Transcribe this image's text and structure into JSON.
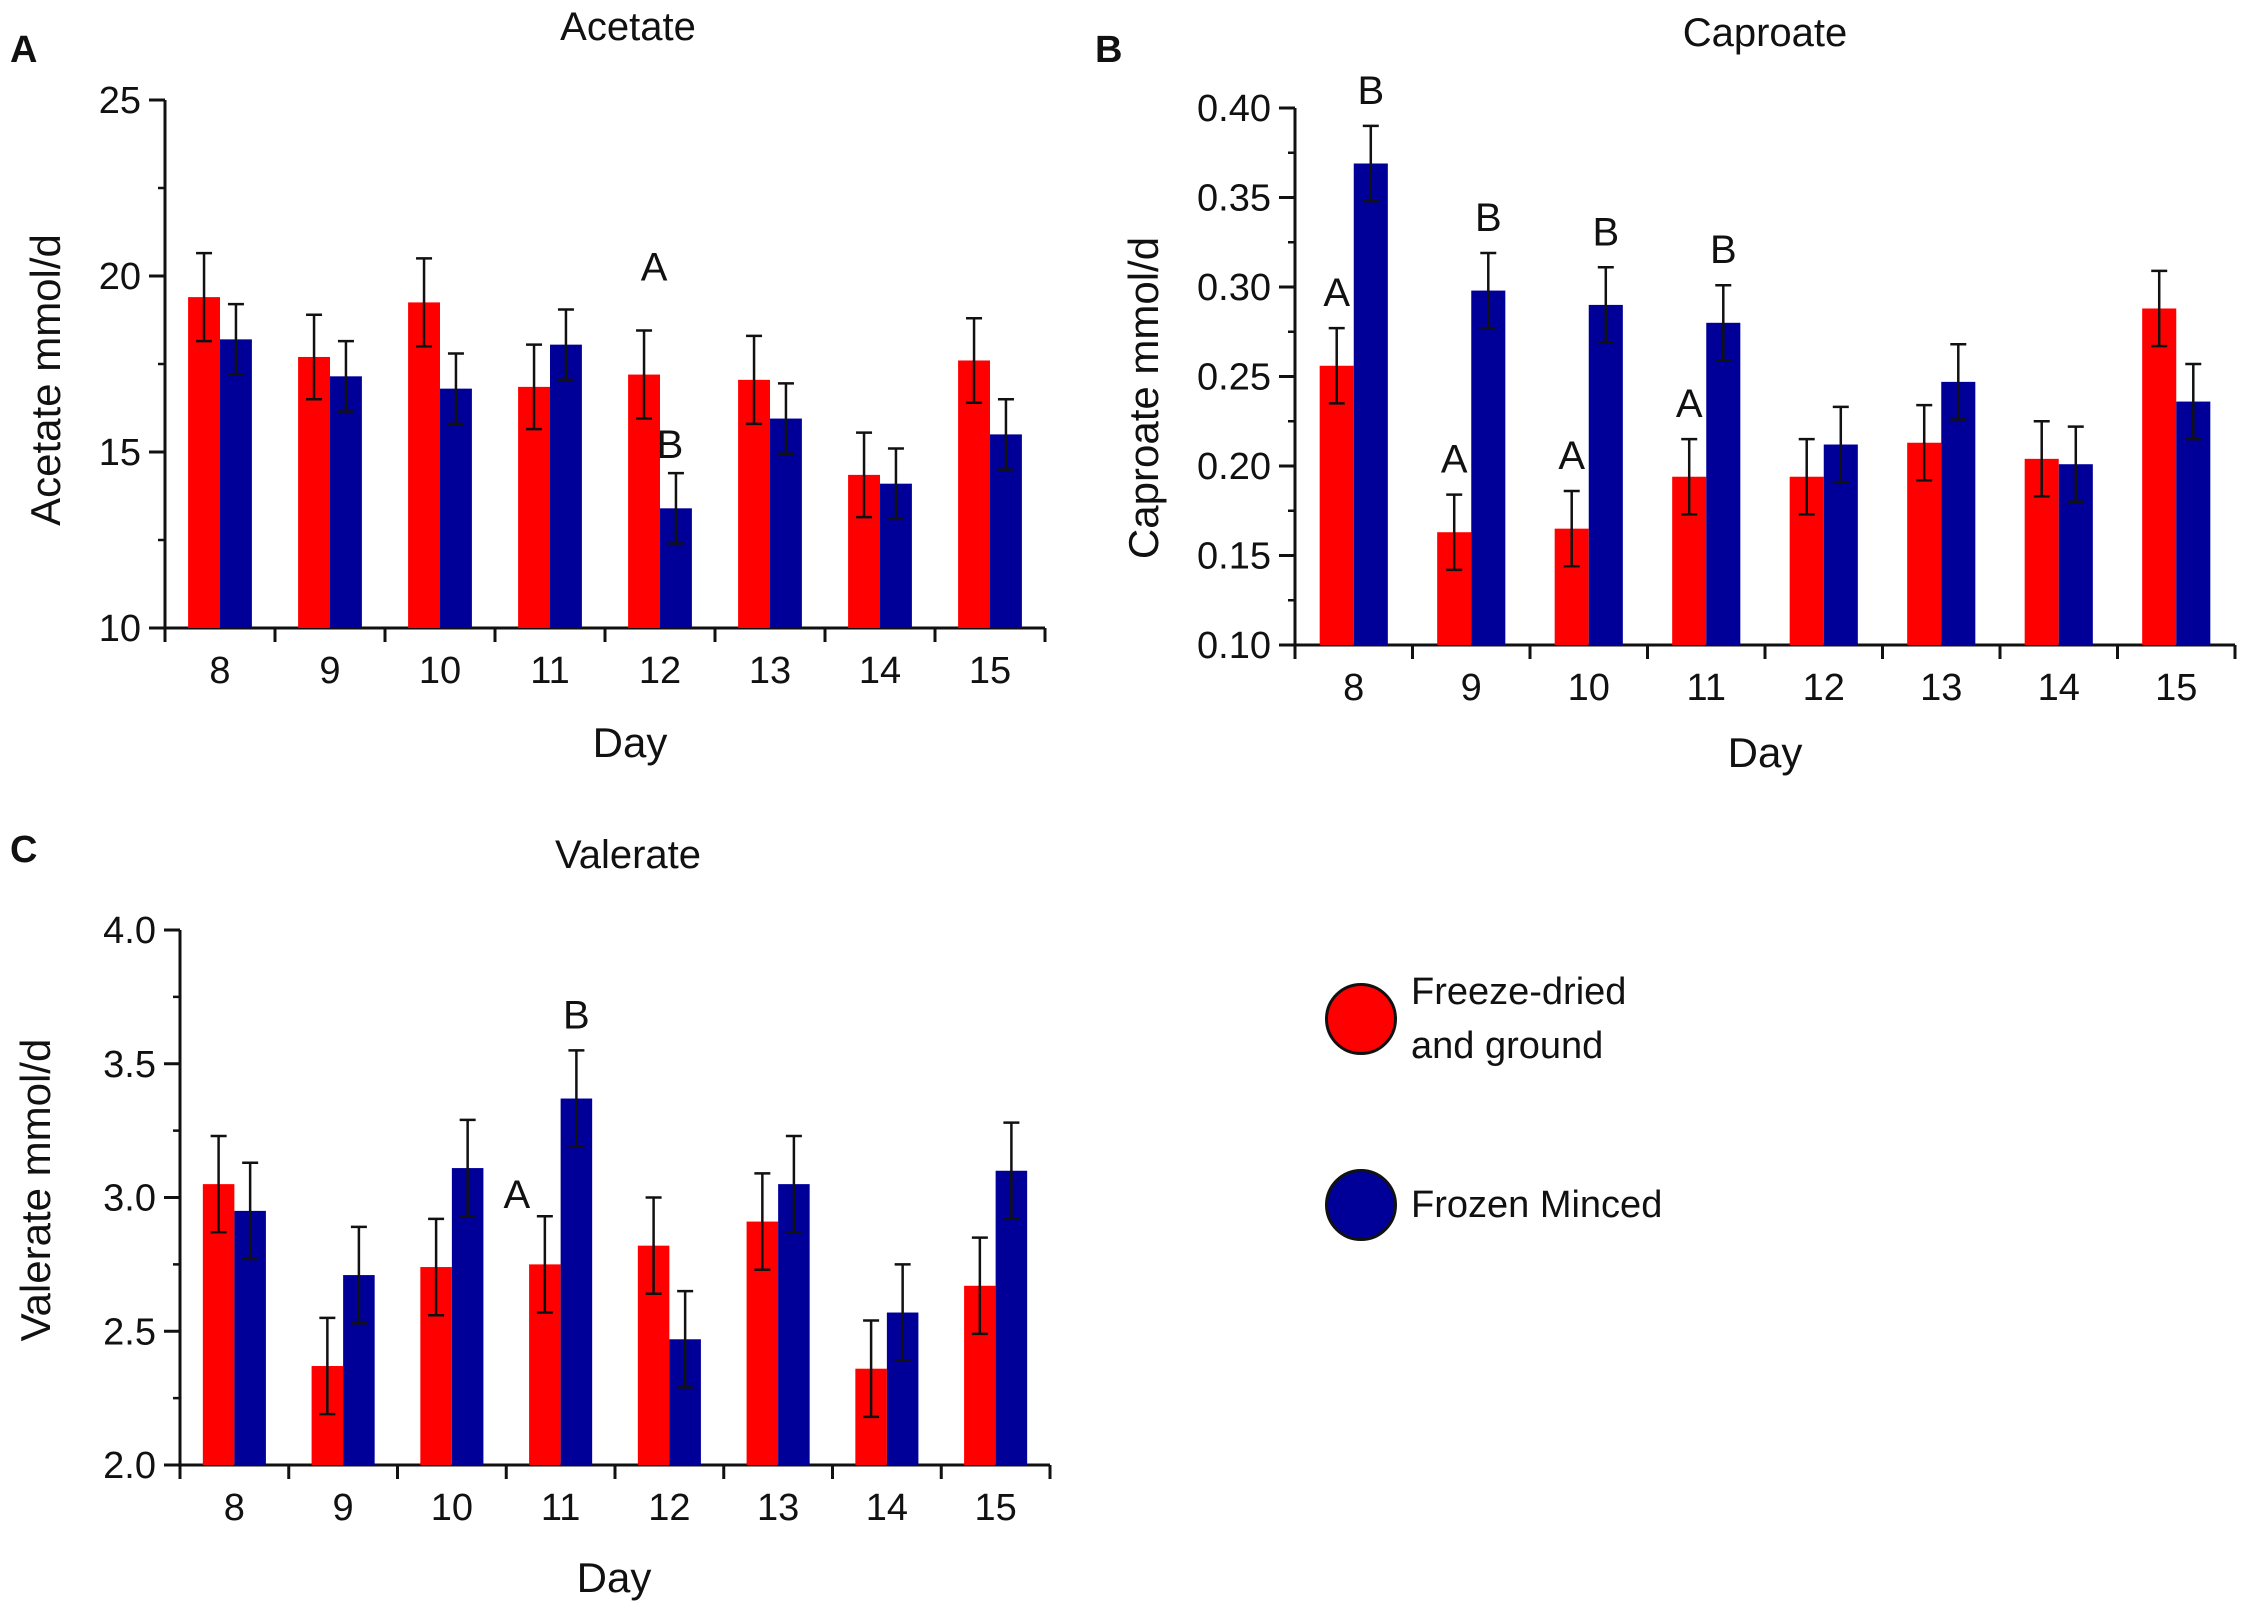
{
  "legend": {
    "series": [
      {
        "name": "Freeze-dried\nand ground",
        "color": "#ff0000"
      },
      {
        "name": "Frozen Minced",
        "color": "#000099"
      }
    ]
  },
  "chart_data": [
    {
      "panel": "A",
      "type": "bar",
      "title": "Acetate",
      "xlabel": "Day",
      "ylabel": "Acetate mmol/d",
      "categories": [
        "8",
        "9",
        "10",
        "11",
        "12",
        "13",
        "14",
        "15"
      ],
      "ylim": [
        10,
        25
      ],
      "yticks": [
        "10",
        "15",
        "20",
        "25"
      ],
      "minor_step": 2.5,
      "series": [
        {
          "name": "Freeze-dried and ground",
          "color": "#ff0000",
          "values": [
            19.4,
            17.7,
            19.25,
            16.85,
            17.2,
            17.05,
            14.35,
            17.6
          ],
          "errors": [
            1.25,
            1.2,
            1.25,
            1.2,
            1.25,
            1.25,
            1.2,
            1.2
          ]
        },
        {
          "name": "Frozen Minced",
          "color": "#000099",
          "values": [
            18.2,
            17.15,
            16.8,
            18.05,
            13.4,
            15.95,
            14.1,
            15.5
          ],
          "errors": [
            1.0,
            1.0,
            1.0,
            1.0,
            1.0,
            1.0,
            1.0,
            1.0
          ]
        }
      ],
      "annotations": [
        {
          "text": "A",
          "category": "12",
          "series": 0
        },
        {
          "text": "B",
          "category": "12",
          "series": 1
        }
      ]
    },
    {
      "panel": "B",
      "type": "bar",
      "title": "Caproate",
      "xlabel": "Day",
      "ylabel": "Caproate mmol/d",
      "categories": [
        "8",
        "9",
        "10",
        "11",
        "12",
        "13",
        "14",
        "15"
      ],
      "ylim": [
        0.1,
        0.4
      ],
      "yticks": [
        "0.10",
        "0.15",
        "0.20",
        "0.25",
        "0.30",
        "0.35",
        "0.40"
      ],
      "minor_step": 0.025,
      "series": [
        {
          "name": "Freeze-dried and ground",
          "color": "#ff0000",
          "values": [
            0.256,
            0.163,
            0.165,
            0.194,
            0.194,
            0.213,
            0.204,
            0.288
          ],
          "errors": [
            0.021,
            0.021,
            0.021,
            0.021,
            0.021,
            0.021,
            0.021,
            0.021
          ]
        },
        {
          "name": "Frozen Minced",
          "color": "#000099",
          "values": [
            0.369,
            0.298,
            0.29,
            0.28,
            0.212,
            0.247,
            0.201,
            0.236
          ],
          "errors": [
            0.021,
            0.021,
            0.021,
            0.021,
            0.021,
            0.021,
            0.021,
            0.021
          ]
        }
      ],
      "annotations": [
        {
          "text": "A",
          "category": "8",
          "series": 0
        },
        {
          "text": "B",
          "category": "8",
          "series": 1
        },
        {
          "text": "A",
          "category": "9",
          "series": 0
        },
        {
          "text": "B",
          "category": "9",
          "series": 1
        },
        {
          "text": "A",
          "category": "10",
          "series": 0
        },
        {
          "text": "B",
          "category": "10",
          "series": 1
        },
        {
          "text": "A",
          "category": "11",
          "series": 0
        },
        {
          "text": "B",
          "category": "11",
          "series": 1
        }
      ]
    },
    {
      "panel": "C",
      "type": "bar",
      "title": "Valerate",
      "xlabel": "Day",
      "ylabel": "Valerate mmol/d",
      "categories": [
        "8",
        "9",
        "10",
        "11",
        "12",
        "13",
        "14",
        "15"
      ],
      "ylim": [
        2.0,
        4.0
      ],
      "yticks": [
        "2.0",
        "2.5",
        "3.0",
        "3.5",
        "4.0"
      ],
      "minor_step": 0.25,
      "series": [
        {
          "name": "Freeze-dried and ground",
          "color": "#ff0000",
          "values": [
            3.05,
            2.37,
            2.74,
            2.75,
            2.82,
            2.91,
            2.36,
            2.67
          ],
          "errors": [
            0.18,
            0.18,
            0.18,
            0.18,
            0.18,
            0.18,
            0.18,
            0.18
          ]
        },
        {
          "name": "Frozen Minced",
          "color": "#000099",
          "values": [
            2.95,
            2.71,
            3.11,
            3.37,
            2.47,
            3.05,
            2.57,
            3.1
          ],
          "errors": [
            0.18,
            0.18,
            0.18,
            0.18,
            0.18,
            0.18,
            0.18,
            0.18
          ]
        }
      ],
      "annotations": [
        {
          "text": "A",
          "category": "11",
          "series": 0
        },
        {
          "text": "B",
          "category": "11",
          "series": 1
        }
      ]
    }
  ]
}
